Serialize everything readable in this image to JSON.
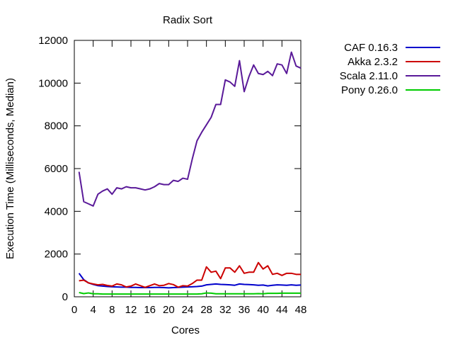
{
  "chart_data": {
    "type": "line",
    "title": "Radix Sort",
    "xlabel": "Cores",
    "ylabel": "Execution Time (Milliseconds, Median)",
    "xlim": [
      0,
      48
    ],
    "ylim": [
      0,
      12000
    ],
    "xticks": [
      "0",
      "4",
      "8",
      "12",
      "16",
      "20",
      "24",
      "28",
      "32",
      "36",
      "40",
      "44",
      "48"
    ],
    "yticks": [
      "0",
      "2000",
      "4000",
      "6000",
      "8000",
      "10000",
      "12000"
    ],
    "grid": false,
    "legend_position": "top-right-outside",
    "x": [
      1,
      2,
      3,
      4,
      5,
      6,
      7,
      8,
      9,
      10,
      11,
      12,
      13,
      14,
      15,
      16,
      17,
      18,
      19,
      20,
      21,
      22,
      23,
      24,
      25,
      26,
      27,
      28,
      29,
      30,
      31,
      32,
      33,
      34,
      35,
      36,
      37,
      38,
      39,
      40,
      41,
      42,
      43,
      44,
      45,
      46,
      47,
      48
    ],
    "series": [
      {
        "name": "CAF 0.16.3",
        "color": "#0000cc",
        "values": [
          1100,
          800,
          650,
          580,
          520,
          500,
          480,
          470,
          460,
          450,
          450,
          440,
          440,
          430,
          430,
          430,
          440,
          440,
          430,
          420,
          430,
          440,
          450,
          460,
          470,
          480,
          500,
          560,
          580,
          600,
          580,
          570,
          560,
          540,
          600,
          580,
          570,
          560,
          540,
          550,
          510,
          540,
          560,
          550,
          540,
          560,
          540,
          550
        ]
      },
      {
        "name": "Akka 2.3.2",
        "color": "#cc0000",
        "values": [
          750,
          780,
          650,
          600,
          560,
          580,
          530,
          500,
          600,
          560,
          460,
          500,
          600,
          520,
          440,
          520,
          600,
          520,
          540,
          620,
          570,
          450,
          520,
          500,
          620,
          780,
          780,
          1400,
          1150,
          1200,
          850,
          1350,
          1350,
          1150,
          1450,
          1100,
          1150,
          1150,
          1600,
          1300,
          1450,
          1050,
          1100,
          1000,
          1100,
          1100,
          1050,
          1050
        ]
      },
      {
        "name": "Scala 2.11.0",
        "color": "#5a1a99",
        "values": [
          5850,
          4450,
          4350,
          4250,
          4800,
          4950,
          5050,
          4800,
          5100,
          5050,
          5150,
          5100,
          5100,
          5050,
          5000,
          5050,
          5150,
          5300,
          5250,
          5250,
          5450,
          5400,
          5550,
          5500,
          6450,
          7300,
          7700,
          8050,
          8400,
          9000,
          9000,
          10150,
          10050,
          9850,
          11050,
          9600,
          10300,
          10850,
          10450,
          10400,
          10550,
          10350,
          10900,
          10850,
          10450,
          11450,
          10800,
          10700
        ]
      },
      {
        "name": "Pony 0.26.0",
        "color": "#00cc00",
        "values": [
          200,
          150,
          180,
          140,
          140,
          130,
          130,
          130,
          130,
          130,
          130,
          130,
          130,
          130,
          130,
          130,
          130,
          130,
          130,
          130,
          130,
          130,
          130,
          130,
          130,
          130,
          140,
          180,
          170,
          140,
          140,
          140,
          140,
          140,
          140,
          140,
          140,
          140,
          150,
          140,
          160,
          160,
          160,
          170,
          170,
          170,
          170,
          170
        ]
      }
    ]
  }
}
